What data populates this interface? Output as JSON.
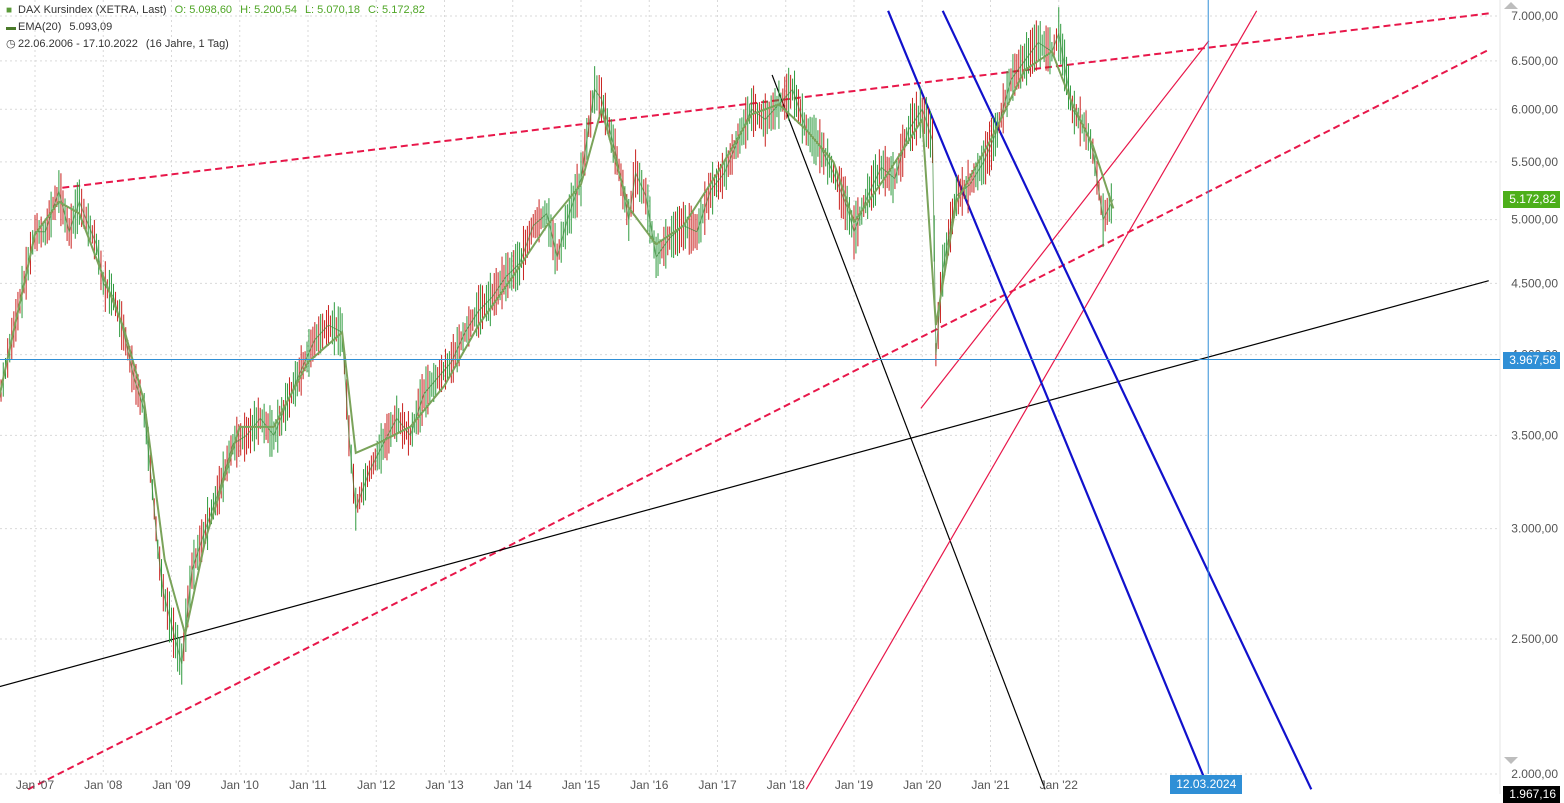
{
  "legend": {
    "instrument": "DAX Kursindex (XETRA, Last)",
    "open": "O: 5.098,60",
    "high": "H: 5.200,54",
    "low": "L: 5.070,18",
    "close": "C: 5.172,82",
    "ema_label": "EMA(20)",
    "ema_value": "5.093,09",
    "range": "22.06.2006 - 17.10.2022",
    "range_detail": "(16 Jahre, 1 Tag)",
    "icons": [
      "square-icon",
      "dash-icon",
      "clock-icon"
    ]
  },
  "last_price_tag": {
    "text": "5.172,82",
    "value": 5172.82,
    "color": "#4caf1a"
  },
  "crosshair_price_tag": {
    "text": "3.967,58",
    "value": 3967.58,
    "color": "#2f8fd6"
  },
  "crosshair_date_tag": {
    "text": "12.03.2024",
    "color": "#2f8fd6"
  },
  "bottom_clipped_label": "1.967,16",
  "chart_data": {
    "type": "line",
    "ylim": [
      2000,
      7000
    ],
    "y_scale": "log",
    "y_ticks": [
      "7.000,00",
      "6.500,00",
      "6.000,00",
      "5.500,00",
      "5.000,00",
      "4.500,00",
      "4.000,00",
      "3.500,00",
      "3.000,00",
      "2.500,00",
      "2.000,00"
    ],
    "y_tick_values": [
      7000,
      6500,
      6000,
      5500,
      5000,
      4500,
      4000,
      3500,
      3000,
      2500,
      2000
    ],
    "x_ticks": [
      "Jan '07",
      "Jan '08",
      "Jan '09",
      "Jan '10",
      "Jan '11",
      "Jan '12",
      "Jan '13",
      "Jan '14",
      "Jan '15",
      "Jan '16",
      "Jan '17",
      "Jan '18",
      "Jan '19",
      "Jan '20",
      "Jan '21",
      "Jan '22"
    ],
    "x_tick_years": [
      2007,
      2008,
      2009,
      2010,
      2011,
      2012,
      2013,
      2014,
      2015,
      2016,
      2017,
      2018,
      2019,
      2020,
      2021,
      2022
    ],
    "grid": true,
    "series": [
      {
        "name": "DAX Kursindex (XETRA, Last)",
        "color": "#3e8a3a",
        "x": [
          2006.47,
          2006.6,
          2006.75,
          2006.9,
          2007.0,
          2007.15,
          2007.35,
          2007.5,
          2007.65,
          2007.75,
          2007.9,
          2008.0,
          2008.15,
          2008.3,
          2008.45,
          2008.6,
          2008.72,
          2008.8,
          2008.88,
          2009.0,
          2009.15,
          2009.3,
          2009.5,
          2009.7,
          2009.9,
          2010.1,
          2010.3,
          2010.5,
          2010.7,
          2010.9,
          2011.1,
          2011.3,
          2011.5,
          2011.6,
          2011.7,
          2011.9,
          2012.1,
          2012.3,
          2012.5,
          2012.7,
          2012.9,
          2013.1,
          2013.3,
          2013.5,
          2013.7,
          2013.9,
          2014.1,
          2014.3,
          2014.5,
          2014.65,
          2014.8,
          2015.0,
          2015.2,
          2015.3,
          2015.5,
          2015.7,
          2015.8,
          2015.95,
          2016.1,
          2016.3,
          2016.5,
          2016.7,
          2016.9,
          2017.1,
          2017.3,
          2017.5,
          2017.7,
          2017.9,
          2018.1,
          2018.3,
          2018.5,
          2018.7,
          2018.9,
          2019.0,
          2019.2,
          2019.4,
          2019.6,
          2019.8,
          2020.0,
          2020.15,
          2020.2,
          2020.3,
          2020.5,
          2020.7,
          2020.9,
          2021.1,
          2021.3,
          2021.5,
          2021.7,
          2021.9,
          2022.0,
          2022.2,
          2022.4,
          2022.5,
          2022.65,
          2022.8
        ],
        "y": [
          3700,
          3980,
          4300,
          4650,
          4900,
          4900,
          5240,
          4900,
          5150,
          5000,
          4800,
          4500,
          4400,
          4150,
          3850,
          3650,
          3200,
          2900,
          2700,
          2560,
          2400,
          2800,
          3000,
          3200,
          3450,
          3500,
          3600,
          3500,
          3700,
          3900,
          4100,
          4200,
          4150,
          3500,
          3100,
          3300,
          3450,
          3600,
          3500,
          3750,
          3850,
          3950,
          4150,
          4300,
          4400,
          4550,
          4650,
          4950,
          5050,
          4700,
          5000,
          5350,
          6200,
          6100,
          5600,
          5000,
          5400,
          5200,
          4700,
          4850,
          4950,
          4900,
          5250,
          5400,
          5700,
          6000,
          5900,
          6050,
          6200,
          5800,
          5650,
          5400,
          5100,
          4900,
          5200,
          5450,
          5350,
          5800,
          6000,
          5700,
          4000,
          4600,
          5200,
          5300,
          5500,
          5800,
          6300,
          6500,
          6700,
          6600,
          6800,
          6000,
          5800,
          5600,
          5000,
          5172.82
        ]
      },
      {
        "name": "EMA(20)",
        "color": "#7aa35a",
        "x": [
          2006.47,
          2007.0,
          2007.35,
          2007.65,
          2008.0,
          2008.3,
          2008.6,
          2008.9,
          2009.2,
          2009.5,
          2010.0,
          2010.5,
          2011.0,
          2011.5,
          2011.7,
          2012.0,
          2012.5,
          2013.0,
          2013.5,
          2014.0,
          2014.5,
          2015.0,
          2015.3,
          2015.7,
          2016.1,
          2016.5,
          2017.0,
          2017.5,
          2017.9,
          2018.3,
          2018.7,
          2019.0,
          2019.5,
          2020.0,
          2020.2,
          2020.5,
          2021.0,
          2021.5,
          2021.9,
          2022.2,
          2022.5,
          2022.8
        ],
        "y": [
          3720,
          4880,
          5150,
          5050,
          4550,
          4180,
          3700,
          2850,
          2520,
          2950,
          3550,
          3550,
          3950,
          4150,
          3400,
          3450,
          3550,
          3800,
          4200,
          4550,
          4950,
          5300,
          6000,
          5100,
          4800,
          4950,
          5400,
          5950,
          6050,
          5800,
          5500,
          4980,
          5400,
          5900,
          4200,
          5150,
          5700,
          6400,
          6600,
          6050,
          5650,
          5093.09
        ]
      }
    ],
    "annotations": {
      "crosshair": {
        "price": 3967.58,
        "date": "12.03.2024"
      },
      "trendlines": [
        {
          "color": "#e8174a",
          "style": "dashed",
          "x0": 2007.4,
          "y0": 5270,
          "x1": 2028.3,
          "y1": 7030
        },
        {
          "color": "#e8174a",
          "style": "dashed",
          "x0": 2006.9,
          "y0": 1950,
          "x1": 2028.3,
          "y1": 6620
        },
        {
          "color": "#000000",
          "style": "solid",
          "x0": 2006.47,
          "y0": 2310,
          "x1": 2028.3,
          "y1": 4520
        },
        {
          "color": "#000000",
          "style": "solid",
          "x0": 2017.8,
          "y0": 6350,
          "x1": 2021.8,
          "y1": 1950
        },
        {
          "color": "#e8174a",
          "style": "solid",
          "x0": 2018.3,
          "y0": 1950,
          "x1": 2024.9,
          "y1": 7060
        },
        {
          "color": "#e8174a",
          "style": "solid",
          "x0": 2019.98,
          "y0": 3660,
          "x1": 2024.2,
          "y1": 6720
        },
        {
          "color": "#1111cc",
          "style": "solid",
          "x0": 2019.5,
          "y0": 7060,
          "x1": 2024.2,
          "y1": 1950
        },
        {
          "color": "#1111cc",
          "style": "solid",
          "x0": 2020.3,
          "y0": 7060,
          "x1": 2025.7,
          "y1": 1950
        }
      ]
    }
  }
}
